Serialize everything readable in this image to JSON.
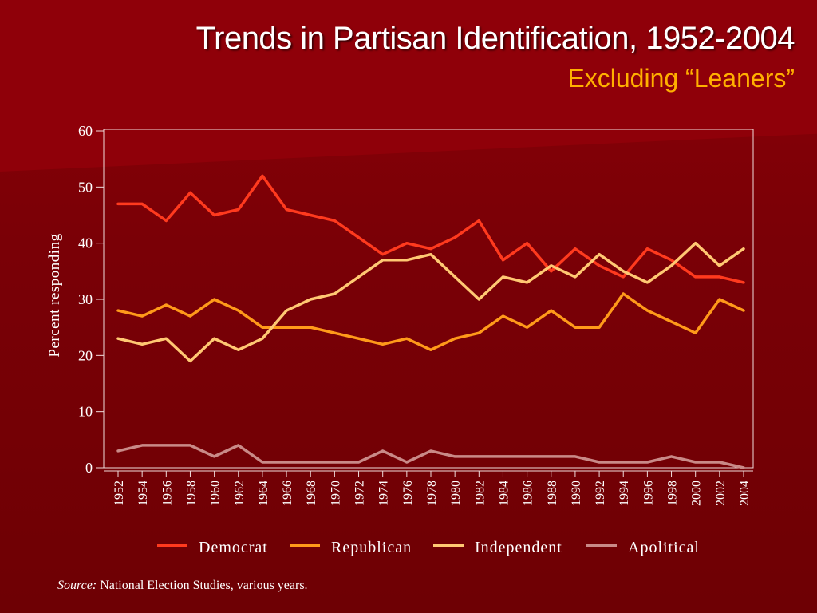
{
  "slide": {
    "title": "Trends in Partisan Identification, 1952-2004",
    "subtitle": "Excluding “Leaners”",
    "source_label": "Source:",
    "source_text": "National Election Studies, various years."
  },
  "colors": {
    "Democrat": "#ff3a1e",
    "Republican": "#ff9a1a",
    "Independent": "#ffc873",
    "Apolitical": "#c98a88"
  },
  "chart_data": {
    "type": "line",
    "title": "",
    "xlabel": "",
    "ylabel": "Percent responding",
    "ylim": [
      0,
      60
    ],
    "yticks": [
      0,
      10,
      20,
      30,
      40,
      50,
      60
    ],
    "grid": false,
    "legend_position": "bottom",
    "x": [
      "1952",
      "1954",
      "1956",
      "1958",
      "1960",
      "1962",
      "1964",
      "1966",
      "1968",
      "1970",
      "1972",
      "1974",
      "1976",
      "1978",
      "1980",
      "1982",
      "1984",
      "1986",
      "1988",
      "1990",
      "1992",
      "1994",
      "1996",
      "1998",
      "2000",
      "2002",
      "2004"
    ],
    "series": [
      {
        "name": "Democrat",
        "values": [
          47,
          47,
          44,
          49,
          45,
          46,
          52,
          46,
          45,
          44,
          41,
          38,
          40,
          39,
          41,
          44,
          37,
          40,
          35,
          39,
          36,
          34,
          39,
          37,
          34,
          34,
          33
        ]
      },
      {
        "name": "Republican",
        "values": [
          28,
          27,
          29,
          27,
          30,
          28,
          25,
          25,
          25,
          24,
          23,
          22,
          23,
          21,
          23,
          24,
          27,
          25,
          28,
          25,
          25,
          31,
          28,
          26,
          24,
          30,
          28
        ]
      },
      {
        "name": "Independent",
        "values": [
          23,
          22,
          23,
          19,
          23,
          21,
          23,
          28,
          30,
          31,
          34,
          37,
          37,
          38,
          34,
          30,
          34,
          33,
          36,
          34,
          38,
          35,
          33,
          36,
          40,
          36,
          39
        ]
      },
      {
        "name": "Apolitical",
        "values": [
          3,
          4,
          4,
          4,
          2,
          4,
          1,
          1,
          1,
          1,
          1,
          3,
          1,
          3,
          2,
          2,
          2,
          2,
          2,
          2,
          1,
          1,
          1,
          2,
          1,
          1,
          0
        ]
      }
    ]
  }
}
